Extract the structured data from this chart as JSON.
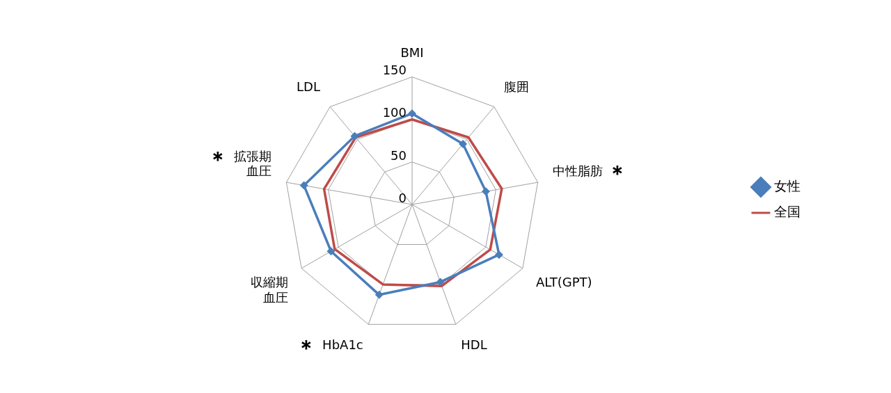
{
  "chart_data": {
    "type": "radar",
    "categories": [
      "BMI",
      "腹囲",
      "中性脂肪",
      "ALT(GPT)",
      "HDL",
      "HbA1c",
      "収縮期血圧",
      "拡張期血圧",
      "LDL"
    ],
    "series": [
      {
        "name": "女性",
        "color": "#4a7ebb",
        "marker": "diamond",
        "values": [
          107,
          93,
          88,
          118,
          97,
          113,
          110,
          129,
          105
        ]
      },
      {
        "name": "全国",
        "color": "#be4b48",
        "marker": "none",
        "values": [
          100,
          103,
          107,
          106,
          102,
          100,
          105,
          105,
          103
        ]
      }
    ],
    "ylim": [
      0,
      150
    ],
    "yticks": [
      0,
      50,
      100,
      150
    ],
    "grid": true,
    "legend": "right",
    "annotations": [
      {
        "text": "＊",
        "x": "中性脂肪"
      },
      {
        "text": "＊",
        "x": "HbA1c"
      },
      {
        "text": "＊",
        "x": "拡張期血圧"
      }
    ]
  }
}
